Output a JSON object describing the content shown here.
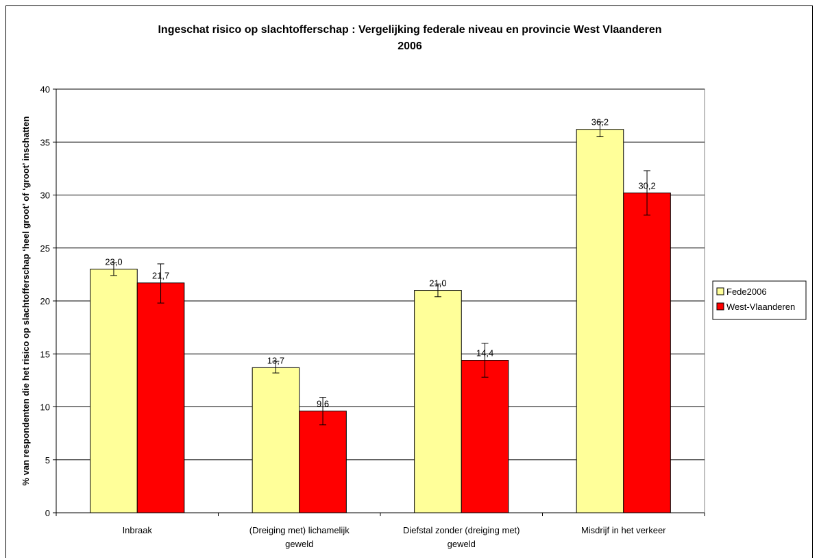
{
  "chart_data": {
    "type": "bar",
    "title_lines": [
      "Ingeschat risico op slachtofferschap : Vergelijking federale niveau en provincie West Vlaanderen",
      "2006"
    ],
    "ylabel": "% van respondenten die het risico op slachtofferschap ‘heel groot’ of ‘groot’ inschatten",
    "xlabel": "",
    "ylim": [
      0,
      40
    ],
    "yticks": [
      "0",
      "5",
      "10",
      "15",
      "20",
      "25",
      "30",
      "35",
      "40"
    ],
    "ytick_values": [
      0,
      5,
      10,
      15,
      20,
      25,
      30,
      35,
      40
    ],
    "grid": true,
    "legend_position": "right",
    "categories": [
      [
        "Inbraak"
      ],
      [
        "(Dreiging met) lichamelijk",
        "geweld"
      ],
      [
        "Diefstal zonder (dreiging met)",
        "geweld"
      ],
      [
        "Misdrijf in het verkeer"
      ]
    ],
    "series": [
      {
        "name": "Fede2006",
        "color": "#ffff99",
        "values": [
          23.0,
          13.7,
          21.0,
          36.2
        ],
        "labels": [
          "23,0",
          "13,7",
          "21,0",
          "36,2"
        ],
        "error_low": [
          22.4,
          13.2,
          20.4,
          35.5
        ],
        "error_high": [
          23.6,
          14.3,
          21.6,
          36.9
        ]
      },
      {
        "name": "West-Vlaanderen",
        "color": "#ff0000",
        "values": [
          21.7,
          9.6,
          14.4,
          30.2
        ],
        "labels": [
          "21,7",
          "9,6",
          "14,4",
          "30,2"
        ],
        "error_low": [
          19.8,
          8.3,
          12.8,
          28.1
        ],
        "error_high": [
          23.5,
          10.9,
          16.0,
          32.3
        ]
      }
    ]
  }
}
